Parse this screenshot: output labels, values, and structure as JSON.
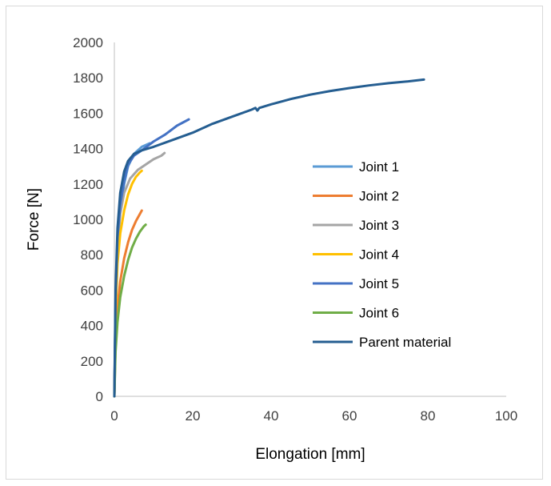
{
  "chart_data": {
    "type": "line",
    "title": "",
    "xlabel": "Elongation [mm]",
    "ylabel": "Force [N]",
    "xlim": [
      0,
      100
    ],
    "ylim": [
      0,
      2000
    ],
    "x_ticks": [
      0,
      20,
      40,
      60,
      80,
      100
    ],
    "y_ticks": [
      0,
      200,
      400,
      600,
      800,
      1000,
      1200,
      1400,
      1600,
      1800,
      2000
    ],
    "x_tick_labels": [
      "0",
      "20",
      "40",
      "60",
      "80",
      "100"
    ],
    "y_tick_labels": [
      "0",
      "200",
      "400",
      "600",
      "800",
      "1000",
      "1200",
      "1400",
      "1600",
      "1800",
      "2000"
    ],
    "grid": false,
    "legend_position": "right",
    "series": [
      {
        "name": "Joint 1",
        "color": "#5b9bd5",
        "points": [
          [
            0,
            0
          ],
          [
            0.3,
            500
          ],
          [
            0.8,
            850
          ],
          [
            1.5,
            1050
          ],
          [
            2.5,
            1200
          ],
          [
            3.5,
            1300
          ],
          [
            5,
            1370
          ],
          [
            7,
            1410
          ],
          [
            9,
            1430
          ]
        ]
      },
      {
        "name": "Joint 2",
        "color": "#ed7d31",
        "points": [
          [
            0,
            0
          ],
          [
            0.3,
            300
          ],
          [
            0.8,
            500
          ],
          [
            1.5,
            650
          ],
          [
            2.5,
            780
          ],
          [
            3.5,
            870
          ],
          [
            4.5,
            940
          ],
          [
            5.5,
            990
          ],
          [
            6.5,
            1030
          ],
          [
            7,
            1050
          ]
        ]
      },
      {
        "name": "Joint 3",
        "color": "#a5a5a5",
        "points": [
          [
            0,
            0
          ],
          [
            0.3,
            500
          ],
          [
            0.8,
            850
          ],
          [
            1.5,
            1030
          ],
          [
            2.5,
            1150
          ],
          [
            4,
            1230
          ],
          [
            6,
            1280
          ],
          [
            8,
            1310
          ],
          [
            10,
            1340
          ],
          [
            12,
            1360
          ],
          [
            12.8,
            1375
          ]
        ]
      },
      {
        "name": "Joint 4",
        "color": "#ffc000",
        "points": [
          [
            0,
            0
          ],
          [
            0.3,
            450
          ],
          [
            0.8,
            750
          ],
          [
            1.5,
            920
          ],
          [
            2.5,
            1050
          ],
          [
            3.5,
            1140
          ],
          [
            4.5,
            1200
          ],
          [
            5.5,
            1240
          ],
          [
            6.5,
            1265
          ],
          [
            7,
            1275
          ]
        ]
      },
      {
        "name": "Joint 5",
        "color": "#4472c4",
        "points": [
          [
            0,
            0
          ],
          [
            0.3,
            550
          ],
          [
            0.8,
            900
          ],
          [
            1.5,
            1080
          ],
          [
            2.5,
            1220
          ],
          [
            3.5,
            1310
          ],
          [
            5,
            1360
          ],
          [
            7,
            1390
          ],
          [
            10,
            1440
          ],
          [
            13,
            1480
          ],
          [
            16,
            1530
          ],
          [
            19,
            1565
          ]
        ]
      },
      {
        "name": "Joint 6",
        "color": "#70ad47",
        "points": [
          [
            0,
            0
          ],
          [
            0.3,
            250
          ],
          [
            0.8,
            420
          ],
          [
            1.5,
            560
          ],
          [
            2.5,
            680
          ],
          [
            3.5,
            770
          ],
          [
            4.5,
            840
          ],
          [
            5.5,
            890
          ],
          [
            6.5,
            930
          ],
          [
            7.5,
            960
          ],
          [
            8,
            970
          ]
        ]
      },
      {
        "name": "Parent material",
        "color": "#255e91",
        "points": [
          [
            0,
            0
          ],
          [
            0.3,
            600
          ],
          [
            0.8,
            950
          ],
          [
            1.5,
            1150
          ],
          [
            2.5,
            1270
          ],
          [
            3.5,
            1330
          ],
          [
            5,
            1370
          ],
          [
            7,
            1390
          ],
          [
            10,
            1410
          ],
          [
            15,
            1450
          ],
          [
            20,
            1490
          ],
          [
            25,
            1540
          ],
          [
            30,
            1580
          ],
          [
            35,
            1620
          ],
          [
            36,
            1630
          ],
          [
            36.5,
            1615
          ],
          [
            37,
            1630
          ],
          [
            40,
            1650
          ],
          [
            45,
            1680
          ],
          [
            50,
            1705
          ],
          [
            55,
            1725
          ],
          [
            60,
            1742
          ],
          [
            65,
            1757
          ],
          [
            70,
            1770
          ],
          [
            75,
            1780
          ],
          [
            79,
            1790
          ]
        ]
      }
    ]
  }
}
